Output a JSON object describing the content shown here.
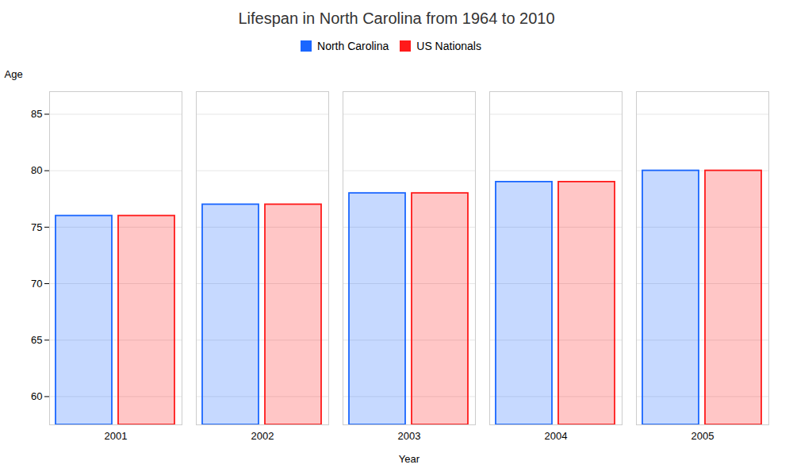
{
  "chart_data": {
    "type": "bar",
    "title": "Lifespan in North Carolina from 1964 to 2010",
    "xlabel": "Year",
    "ylabel": "Age",
    "categories": [
      "2001",
      "2002",
      "2003",
      "2004",
      "2005"
    ],
    "series": [
      {
        "name": "North Carolina",
        "color": "#1a66ff",
        "values": [
          76,
          77,
          78,
          79,
          80
        ]
      },
      {
        "name": "US Nationals",
        "color": "#ff1a1a",
        "values": [
          76,
          77,
          78,
          79,
          80
        ]
      }
    ],
    "ylim": [
      57.5,
      87
    ],
    "yticks": [
      60,
      65,
      70,
      75,
      80,
      85
    ],
    "grid": true,
    "legend": "top"
  }
}
